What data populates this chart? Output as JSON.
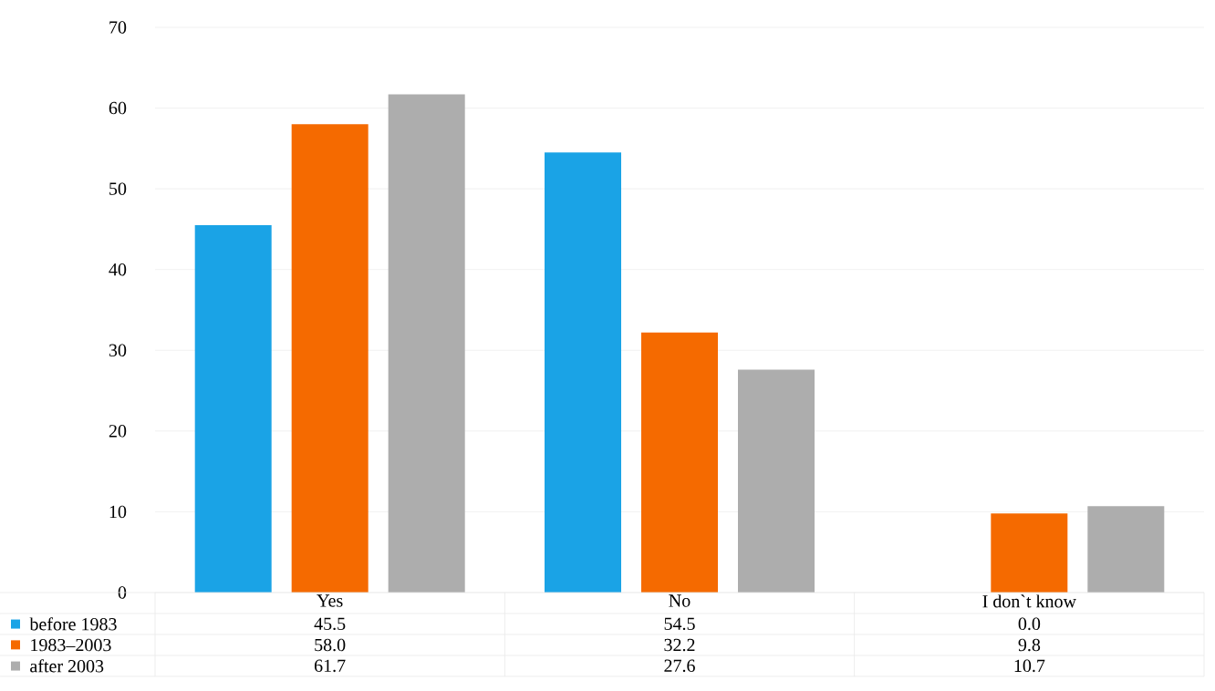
{
  "chart_data": {
    "type": "bar",
    "categories": [
      "Yes",
      "No",
      "I don`t know"
    ],
    "series": [
      {
        "name": "before 1983",
        "color": "#1aa3e6",
        "values": [
          45.5,
          54.5,
          0
        ],
        "value_labels": [
          "45.5",
          "54.5",
          "0.0"
        ]
      },
      {
        "name": "1983–2003",
        "color": "#f56a00",
        "values": [
          58,
          32.2,
          9.8
        ],
        "value_labels": [
          "58.0",
          "32.2",
          "9.8"
        ]
      },
      {
        "name": "after 2003",
        "color": "#adadad",
        "values": [
          61.7,
          27.6,
          10.7
        ],
        "value_labels": [
          "61.7",
          "27.6",
          "10.7"
        ]
      }
    ],
    "ylim": [
      0,
      70
    ],
    "yticks": [
      0,
      10,
      20,
      30,
      40,
      50,
      60,
      70
    ],
    "grid": "y",
    "legend": "bottom left"
  }
}
